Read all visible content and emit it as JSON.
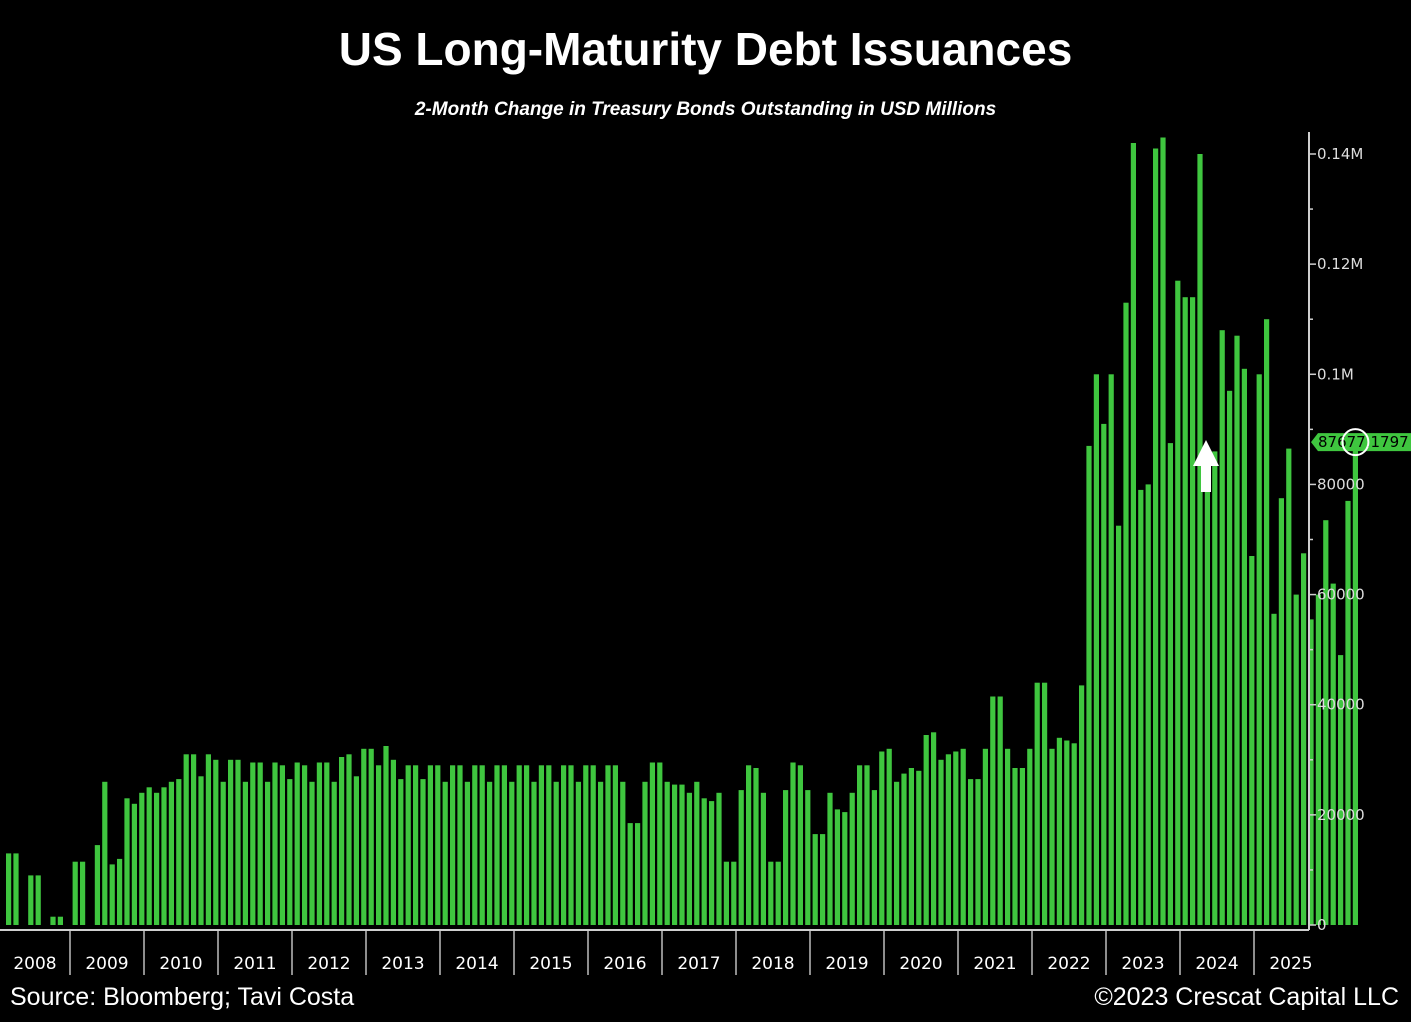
{
  "chart_data": {
    "type": "bar",
    "title": "US Long-Maturity Debt Issuances",
    "subtitle": "2-Month Change in Treasury Bonds Outstanding in USD Millions",
    "xlabel": "",
    "ylabel": "",
    "ylim": [
      0,
      142000
    ],
    "x_year_labels": [
      "2008",
      "2009",
      "2010",
      "2011",
      "2012",
      "2013",
      "2014",
      "2015",
      "2016",
      "2017",
      "2018",
      "2019",
      "2020",
      "2021",
      "2022",
      "2023",
      "2024",
      "2025"
    ],
    "y_tick_values": [
      0,
      20000,
      40000,
      60000,
      80000,
      100000,
      120000,
      140000
    ],
    "y_tick_labels": [
      "0",
      "20000",
      "40000",
      "60000",
      "80000",
      "0.1M",
      "0.12M",
      "0.14M"
    ],
    "bar_color": "#3fc63f",
    "last_value": 87677.1797,
    "last_value_label": "87677.1797",
    "grid": false,
    "series": [
      {
        "values": [
          13000,
          13000,
          0,
          9000,
          9000,
          0,
          1500,
          1500,
          0,
          11500,
          11500,
          0,
          14500,
          26000,
          11000,
          12000,
          23000,
          22000,
          24000,
          25000,
          24000,
          25000,
          26000,
          26500,
          31000,
          31000,
          27000,
          31000,
          30000,
          26000,
          30000,
          30000,
          26000,
          29500,
          29500,
          26000,
          29500,
          29000,
          26500,
          29500,
          29000,
          26000,
          29500,
          29500,
          26000,
          30500,
          31000,
          27000,
          32000,
          32000,
          29000,
          32500,
          30000,
          26500,
          29000,
          29000,
          26500,
          29000,
          29000,
          26000,
          29000,
          29000,
          26000,
          29000,
          29000,
          26000,
          29000,
          29000,
          26000,
          29000,
          29000,
          26000,
          29000,
          29000,
          26000,
          29000,
          29000,
          26000,
          29000,
          29000,
          26000,
          29000,
          29000,
          26000,
          18500,
          18500,
          26000,
          29500,
          29500,
          26000,
          25500,
          25500,
          24000,
          26000,
          23000,
          22500,
          24000,
          11500,
          11500,
          24500,
          29000,
          28500,
          24000,
          11500,
          11500,
          24500,
          29500,
          29000,
          24500,
          16500,
          16500,
          24000,
          21000,
          20500,
          24000,
          29000,
          29000,
          24500,
          31500,
          32000,
          26000,
          27500,
          28500,
          28000,
          34500,
          35000,
          30000,
          31000,
          31500,
          32000,
          26500,
          26500,
          32000,
          41500,
          41500,
          32000,
          28500,
          28500,
          32000,
          44000,
          44000,
          32000,
          34000,
          33500,
          33000,
          43500,
          87000,
          100000,
          91000,
          100000,
          72500,
          113000,
          142000,
          79000,
          80000,
          141000,
          143000,
          87500,
          117000,
          114000,
          114000,
          140000,
          79000,
          86000,
          108000,
          97000,
          107000,
          101000,
          67000,
          100000,
          110000,
          56500,
          77500,
          86500,
          60000,
          67500,
          55500,
          60000,
          73500,
          62000,
          49000,
          77000,
          87677.1797
        ]
      }
    ],
    "annotations": [
      "circle-on-last-bar",
      "up-arrow"
    ]
  },
  "footer": {
    "source": "Source: Bloomberg; Tavi Costa",
    "credit": "©2023 Crescat Capital LLC"
  }
}
